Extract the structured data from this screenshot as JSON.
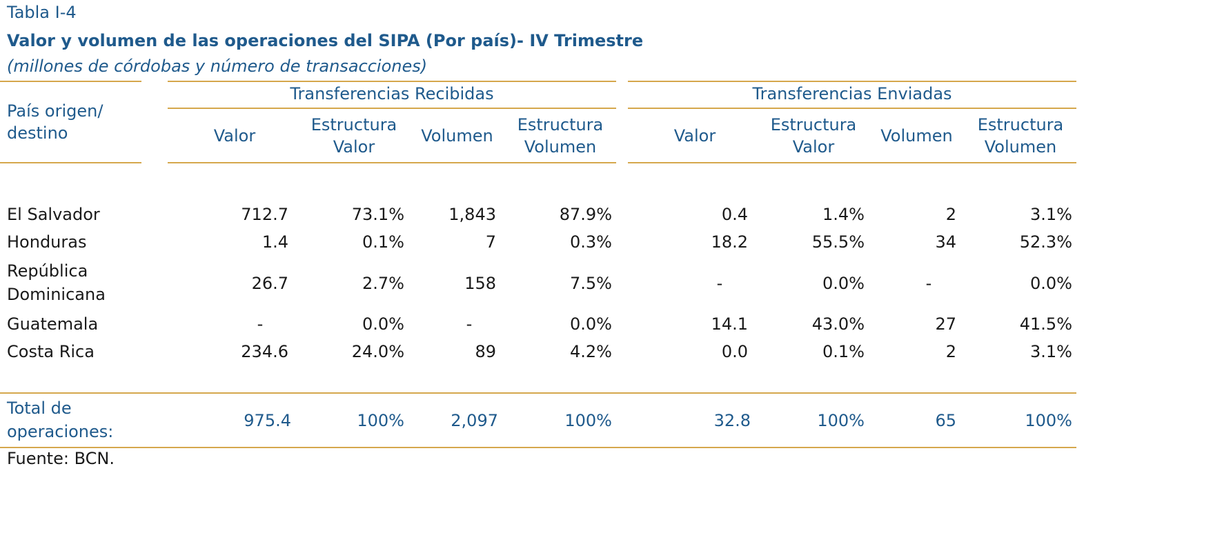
{
  "title": {
    "label": "Tabla I-4",
    "main": "Valor y volumen de las operaciones del SIPA (Por país)- IV Trimestre",
    "subtitle": "(millones de córdobas y número de transacciones)"
  },
  "header": {
    "first_col_line1": "País origen/",
    "first_col_line2": "destino",
    "group_received": "Transferencias Recibidas",
    "group_sent": "Transferencias Enviadas",
    "col_valor": "Valor",
    "col_estructura": "Estructura",
    "col_valor2": "Valor",
    "col_volumen": "Volumen",
    "col_volumen2": "Volumen"
  },
  "rows": [
    {
      "country_line1": "El Salvador",
      "country_line2": "",
      "r_valor": "712.7",
      "r_est_valor": "73.1%",
      "r_vol": "1,843",
      "r_est_vol": "87.9%",
      "s_valor": "0.4",
      "s_est_valor": "1.4%",
      "s_vol": "2",
      "s_est_vol": "3.1%"
    },
    {
      "country_line1": "Honduras",
      "country_line2": "",
      "r_valor": "1.4",
      "r_est_valor": "0.1%",
      "r_vol": "7",
      "r_est_vol": "0.3%",
      "s_valor": "18.2",
      "s_est_valor": "55.5%",
      "s_vol": "34",
      "s_est_vol": "52.3%"
    },
    {
      "country_line1": "República",
      "country_line2": "Dominicana",
      "r_valor": "26.7",
      "r_est_valor": "2.7%",
      "r_vol": "158",
      "r_est_vol": "7.5%",
      "s_valor": "-",
      "s_est_valor": "0.0%",
      "s_vol": "-",
      "s_est_vol": "0.0%"
    },
    {
      "country_line1": "Guatemala",
      "country_line2": "",
      "r_valor": "-",
      "r_est_valor": "0.0%",
      "r_vol": "-",
      "r_est_vol": "0.0%",
      "s_valor": "14.1",
      "s_est_valor": "43.0%",
      "s_vol": "27",
      "s_est_vol": "41.5%"
    },
    {
      "country_line1": "Costa Rica",
      "country_line2": "",
      "r_valor": "234.6",
      "r_est_valor": "24.0%",
      "r_vol": "89",
      "r_est_vol": "4.2%",
      "s_valor": "0.0",
      "s_est_valor": "0.1%",
      "s_vol": "2",
      "s_est_vol": "3.1%"
    }
  ],
  "total": {
    "label_line1": "Total de",
    "label_line2": "operaciones:",
    "r_valor": "975.4",
    "r_est_valor": "100%",
    "r_vol": "2,097",
    "r_est_vol": "100%",
    "s_valor": "32.8",
    "s_est_valor": "100%",
    "s_vol": "65",
    "s_est_vol": "100%"
  },
  "source": "Fuente: BCN.",
  "colors": {
    "title_blue": "#1f5a8c",
    "rule_gold": "#d5a74c",
    "text": "#1a1a1a"
  }
}
